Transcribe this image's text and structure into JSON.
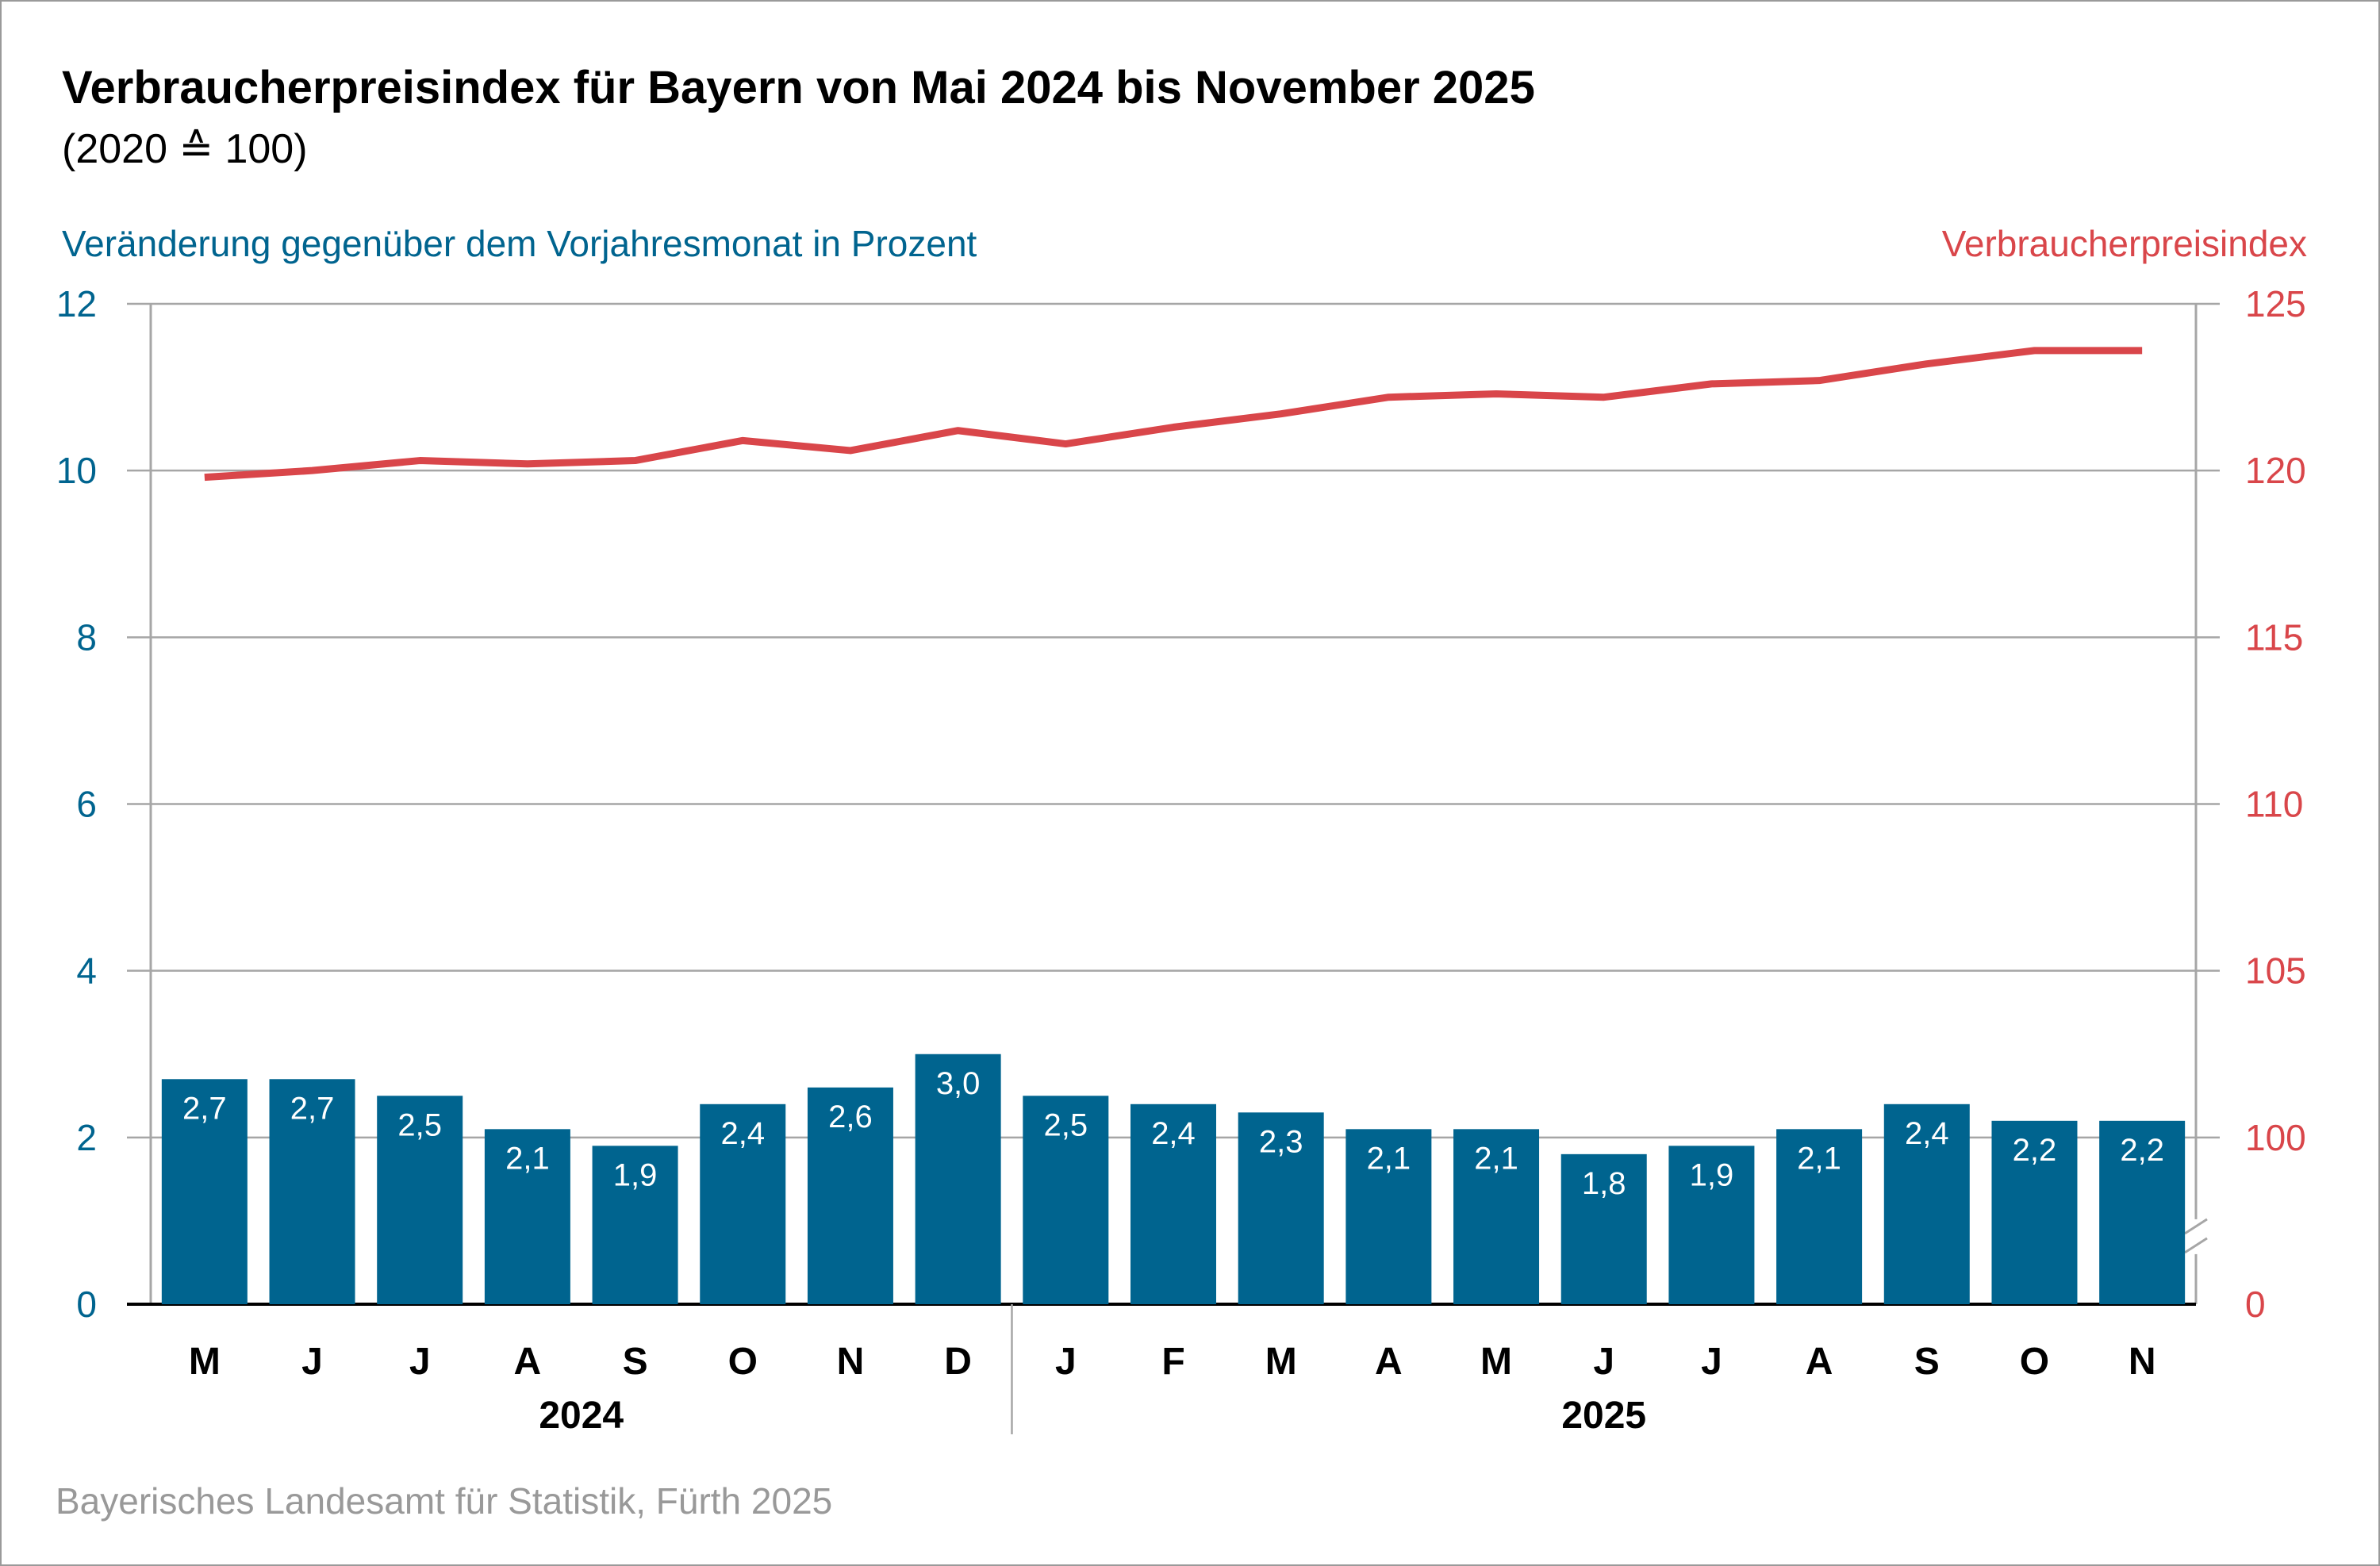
{
  "title": "Verbraucherpreisindex für Bayern von Mai 2024 bis November 2025",
  "subtitle": "(2020 ≙ 100)",
  "source": "Bayerisches Landesamt für Statistik, Fürth 2025",
  "colors": {
    "bar": "#00648f",
    "line": "#d9464a",
    "left_axis_text": "#00648f",
    "right_axis_text": "#d9464a",
    "grid": "#a6a6a6"
  },
  "chart_data": {
    "type": "bar",
    "categories": [
      "M",
      "J",
      "J",
      "A",
      "S",
      "O",
      "N",
      "D",
      "J",
      "F",
      "M",
      "A",
      "M",
      "J",
      "J",
      "A",
      "S",
      "O",
      "N"
    ],
    "years": [
      {
        "label": "2024",
        "from_index": 0,
        "to_index": 7
      },
      {
        "label": "2025",
        "from_index": 8,
        "to_index": 18
      }
    ],
    "y_left": {
      "label": "Veränderung gegenüber dem Vorjahresmonat in Prozent",
      "range": [
        0,
        12
      ],
      "ticks": [
        "0",
        "2",
        "4",
        "6",
        "8",
        "10",
        "12"
      ]
    },
    "y_right": {
      "label": "Verbraucherpreisindex",
      "range": [
        100,
        125
      ],
      "axis_break": true,
      "ticks": [
        {
          "value": 0,
          "label": "0"
        },
        {
          "value": 100,
          "label": "100"
        },
        {
          "value": 105,
          "label": "105"
        },
        {
          "value": 110,
          "label": "110"
        },
        {
          "value": 115,
          "label": "115"
        },
        {
          "value": 120,
          "label": "120"
        },
        {
          "value": 125,
          "label": "125"
        }
      ]
    },
    "series": [
      {
        "type": "bar",
        "axis": "left",
        "values": [
          2.7,
          2.7,
          2.5,
          2.1,
          1.9,
          2.4,
          2.6,
          3.0,
          2.5,
          2.4,
          2.3,
          2.1,
          2.1,
          1.8,
          1.9,
          2.1,
          2.4,
          2.2,
          2.2
        ],
        "value_labels": [
          "2,7",
          "2,7",
          "2,5",
          "2,1",
          "1,9",
          "2,4",
          "2,6",
          "3,0",
          "2,5",
          "2,4",
          "2,3",
          "2,1",
          "2,1",
          "1,8",
          "1,9",
          "2,1",
          "2,4",
          "2,2",
          "2,2"
        ]
      },
      {
        "type": "line",
        "axis": "right",
        "values": [
          119.8,
          120.0,
          120.3,
          120.2,
          120.3,
          120.9,
          120.6,
          121.2,
          120.8,
          121.3,
          121.7,
          122.2,
          122.3,
          122.2,
          122.6,
          122.7,
          123.2,
          123.6,
          123.6
        ]
      }
    ],
    "grid": true
  }
}
